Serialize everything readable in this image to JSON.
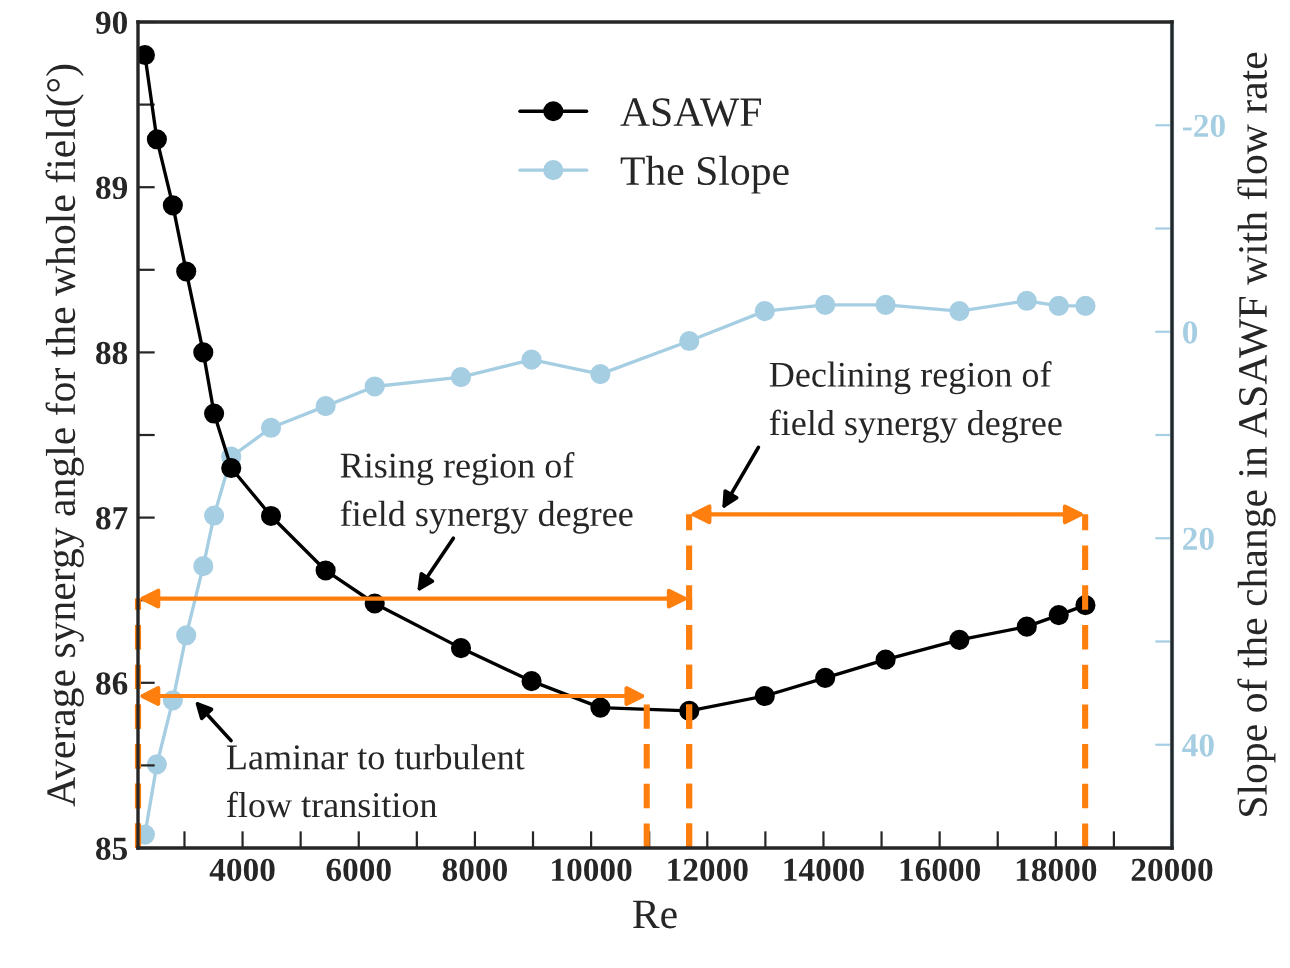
{
  "chart_data": {
    "type": "line",
    "xlabel": "Re",
    "ylabel": "Average synergy angle for the whole field(°)",
    "y2label": "Slope of the change in ASAWF with flow rate",
    "x": [
      2319,
      2525,
      2800,
      3030,
      3324,
      3510,
      3805,
      4490,
      5430,
      6275,
      7760,
      8975,
      10160,
      11690,
      12990,
      14030,
      15070,
      16340,
      17500,
      18050,
      18510
    ],
    "series": [
      {
        "name": "ASAWF",
        "color": "#000000",
        "values": [
          89.8,
          89.29,
          88.89,
          88.49,
          88.0,
          87.63,
          87.3,
          87.01,
          86.68,
          86.48,
          86.21,
          86.01,
          85.85,
          85.83,
          85.92,
          86.03,
          86.14,
          86.26,
          86.34,
          86.41,
          86.47
        ]
      },
      {
        "name": "The Slope",
        "color": "#a6cee3",
        "axis": "y2",
        "values": [
          48.7,
          41.9,
          35.7,
          29.4,
          22.7,
          17.8,
          12.1,
          9.3,
          7.2,
          5.3,
          4.4,
          2.7,
          4.1,
          0.9,
          -2.0,
          -2.6,
          -2.6,
          -2.0,
          -3.0,
          -2.5,
          -2.5
        ]
      }
    ],
    "xlim": [
      2200,
      20000
    ],
    "xticks": [
      {
        "value": 3000,
        "label": null
      },
      4000,
      {
        "value": 5000,
        "label": null
      },
      6000,
      {
        "value": 7000,
        "label": null
      },
      8000,
      {
        "value": 9000,
        "label": null
      },
      10000,
      {
        "value": 11000,
        "label": null
      },
      12000,
      {
        "value": 13000,
        "label": null
      },
      14000,
      {
        "value": 15000,
        "label": null
      },
      16000,
      {
        "value": 17000,
        "label": null
      },
      18000,
      {
        "value": 19000,
        "label": null
      },
      20000
    ],
    "ylim": [
      85,
      90
    ],
    "yticks": [
      85,
      {
        "value": 85.5,
        "label": null
      },
      86,
      {
        "value": 86.5,
        "label": null
      },
      87,
      {
        "value": 87.5,
        "label": null
      },
      88,
      {
        "value": 88.5,
        "label": null
      },
      89,
      {
        "value": 89.5,
        "label": null
      },
      90
    ],
    "y2lim": [
      50,
      -30
    ],
    "y2ticks": [
      {
        "value": 50,
        "label": null
      },
      40,
      {
        "value": 30,
        "label": null
      },
      20,
      {
        "value": 10,
        "label": null
      },
      0,
      {
        "value": -10,
        "label": null
      },
      -20,
      {
        "value": -30,
        "label": null
      }
    ],
    "annotations": [
      "Laminar to turbulent\nflow transition",
      "Rising region of\nfield synergy degree",
      "Declining region of\nfield synergy degree"
    ],
    "marker": "circle",
    "line_style": "solid",
    "legend": "top",
    "grid": false
  }
}
